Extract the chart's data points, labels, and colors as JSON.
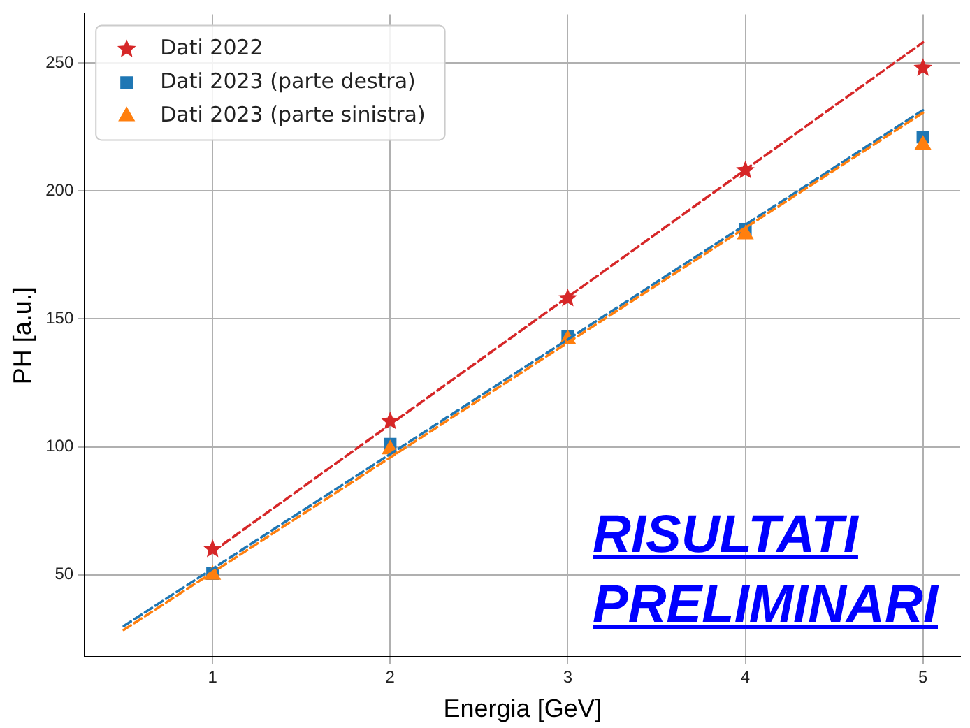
{
  "chart_data": {
    "type": "scatter",
    "xlabel": "Energia [GeV]",
    "ylabel": "PH [a.u.]",
    "xlim": [
      0.28,
      5.21
    ],
    "ylim": [
      18,
      269
    ],
    "xticks": [
      1,
      2,
      3,
      4,
      5
    ],
    "yticks": [
      50,
      100,
      150,
      200,
      250
    ],
    "grid": true,
    "legend": "top left",
    "annotations": [
      "RISULTATI PRELIMINARI"
    ],
    "series": [
      {
        "name": "Dati 2022",
        "color": "#d62728",
        "marker": "star",
        "x": [
          1,
          2,
          3,
          4,
          5
        ],
        "values": [
          60,
          110,
          158,
          208,
          248
        ]
      },
      {
        "name": "Dati 2023 (parte destra)",
        "color": "#1f77b4",
        "marker": "square",
        "x": [
          1,
          2,
          3,
          4,
          5
        ],
        "values": [
          50.5,
          101,
          143,
          185,
          221
        ]
      },
      {
        "name": "Dati 2023 (parte sinistra)",
        "color": "#ff7f0e",
        "marker": "triangle",
        "x": [
          1,
          2,
          3,
          4,
          5
        ],
        "values": [
          50,
          99,
          142,
          183,
          218
        ]
      },
      {
        "type": "line",
        "color": "#d62728",
        "marker": "none",
        "line_style": "dashed",
        "x": [
          1,
          5
        ],
        "values": [
          59,
          258
        ]
      },
      {
        "type": "line",
        "color": "#1f77b4",
        "marker": "none",
        "line_style": "dashed",
        "x": [
          0.5,
          5
        ],
        "values": [
          30,
          231.5
        ]
      },
      {
        "type": "line",
        "color": "#ff7f0e",
        "marker": "none",
        "line_style": "dashed",
        "x": [
          0.5,
          5
        ],
        "values": [
          28.5,
          230.5
        ]
      }
    ]
  }
}
